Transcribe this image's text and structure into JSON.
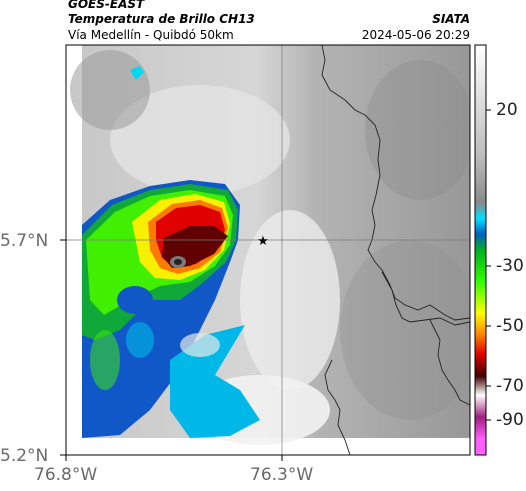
{
  "header": {
    "satellite": "GOES-EAST",
    "product": "Temperatura de Brillo CH13",
    "route": "Vía Medellín - Quibdó 50km",
    "source": "SIATA",
    "datetime": "2024-05-06 20:29"
  },
  "map": {
    "x_ticks": [
      "76.8°W",
      "76.3°W"
    ],
    "y_ticks": [
      "5.7°N",
      "5.2°N"
    ],
    "marker": "star"
  },
  "colorbar": {
    "ticks": [
      "20",
      "-30",
      "-50",
      "-70",
      "-90"
    ],
    "stops": [
      {
        "value": 35,
        "color": "#ffffff"
      },
      {
        "value": 0,
        "color": "#bdbdbd"
      },
      {
        "value": -15,
        "color": "#8a8a8a"
      },
      {
        "value": -20,
        "color": "#00e0ff"
      },
      {
        "value": -25,
        "color": "#0060c0"
      },
      {
        "value": -30,
        "color": "#00b020"
      },
      {
        "value": -40,
        "color": "#30ff00"
      },
      {
        "value": -50,
        "color": "#ffff00"
      },
      {
        "value": -57,
        "color": "#ff8000"
      },
      {
        "value": -63,
        "color": "#e00000"
      },
      {
        "value": -70,
        "color": "#400000"
      },
      {
        "value": -76,
        "color": "#ffffff"
      },
      {
        "value": -83,
        "color": "#a02080"
      },
      {
        "value": -90,
        "color": "#ff60ff"
      }
    ]
  }
}
